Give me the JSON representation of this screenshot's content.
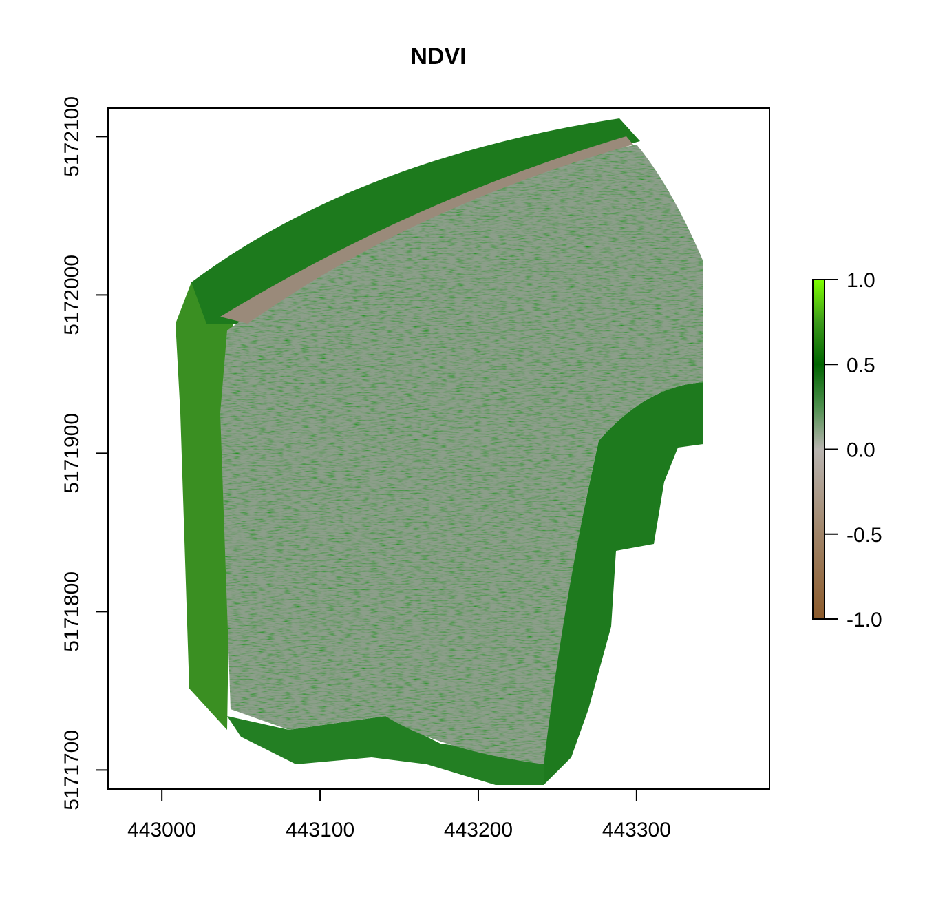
{
  "chart_data": {
    "type": "heatmap",
    "title": "NDVI",
    "xlabel": "",
    "ylabel": "",
    "xlim": [
      442966,
      443384
    ],
    "ylim": [
      5171688,
      5172118
    ],
    "x_ticks": [
      443000,
      443100,
      443200,
      443300
    ],
    "x_tick_labels": [
      "443000",
      "443100",
      "443200",
      "443300"
    ],
    "y_ticks": [
      5171700,
      5171800,
      5171900,
      5172000,
      5172100
    ],
    "y_tick_labels": [
      "5171700",
      "5171800",
      "5171900",
      "5172000",
      "5172100"
    ],
    "grid": false,
    "colorbar": {
      "min": -1.0,
      "max": 1.0,
      "ticks": [
        1.0,
        0.5,
        0.0,
        -0.5,
        -1.0
      ],
      "tick_labels": [
        "1.0",
        "0.5",
        "0.0",
        "-0.5",
        "-1.0"
      ],
      "colors": [
        {
          "value": -1.0,
          "color": "#8b5a2b"
        },
        {
          "value": -0.5,
          "color": "#a08468"
        },
        {
          "value": 0.0,
          "color": "#b8b4b0"
        },
        {
          "value": 0.25,
          "color": "#4d8f4d"
        },
        {
          "value": 0.5,
          "color": "#006400"
        },
        {
          "value": 0.75,
          "color": "#3c9a1a"
        },
        {
          "value": 1.0,
          "color": "#7fff00"
        }
      ]
    },
    "regions": [
      {
        "name": "field",
        "ndvi_mean": 0.1
      },
      {
        "name": "north-strip",
        "ndvi_mean": 0.5
      },
      {
        "name": "west-strip",
        "ndvi_mean": 0.6
      },
      {
        "name": "east-strip",
        "ndvi_mean": 0.45
      },
      {
        "name": "road",
        "ndvi_mean": -0.3
      }
    ]
  }
}
